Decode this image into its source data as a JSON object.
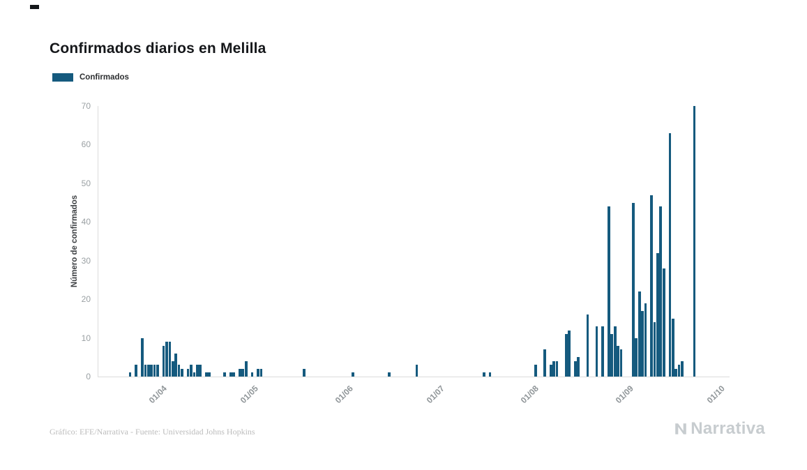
{
  "page": {
    "title": "Confirmados diarios en Melilla",
    "legend": {
      "label": "Confirmados",
      "color": "#155a7e"
    },
    "footer": "Gráfico: EFE/Narrativa - Fuente: Universidad Johns Hopkins",
    "brand": "Narrativa"
  },
  "chart_data": {
    "type": "bar",
    "title": "Confirmados diarios en Melilla",
    "xlabel": "",
    "ylabel": "Número de confirmados",
    "ylim": [
      0,
      70
    ],
    "yticks": [
      0,
      10,
      20,
      30,
      40,
      50,
      60,
      70
    ],
    "grid": false,
    "legend_position": "top-left",
    "x_unit": "day_index_from_axis_start",
    "axis_days": 207,
    "xticks": [
      {
        "label": "01/04",
        "day": 21
      },
      {
        "label": "01/05",
        "day": 51
      },
      {
        "label": "01/06",
        "day": 82
      },
      {
        "label": "01/07",
        "day": 112
      },
      {
        "label": "01/08",
        "day": 143
      },
      {
        "label": "01/09",
        "day": 174
      },
      {
        "label": "01/10",
        "day": 204
      }
    ],
    "points_format": "[day_index, confirmed_count]",
    "series": [
      {
        "name": "Confirmados",
        "color": "#155a7e",
        "points": [
          [
            10,
            1
          ],
          [
            12,
            3
          ],
          [
            14,
            10
          ],
          [
            15,
            3
          ],
          [
            16,
            3
          ],
          [
            17,
            3
          ],
          [
            18,
            3
          ],
          [
            19,
            3
          ],
          [
            21,
            8
          ],
          [
            22,
            9
          ],
          [
            23,
            9
          ],
          [
            24,
            4
          ],
          [
            25,
            6
          ],
          [
            26,
            3
          ],
          [
            27,
            2
          ],
          [
            29,
            2
          ],
          [
            30,
            3
          ],
          [
            31,
            1
          ],
          [
            32,
            3
          ],
          [
            33,
            3
          ],
          [
            35,
            1
          ],
          [
            36,
            1
          ],
          [
            41,
            1
          ],
          [
            43,
            1
          ],
          [
            44,
            1
          ],
          [
            46,
            2
          ],
          [
            47,
            2
          ],
          [
            48,
            4
          ],
          [
            50,
            1
          ],
          [
            52,
            2
          ],
          [
            53,
            2
          ],
          [
            67,
            2
          ],
          [
            83,
            1
          ],
          [
            95,
            1
          ],
          [
            104,
            3
          ],
          [
            126,
            1
          ],
          [
            128,
            1
          ],
          [
            143,
            3
          ],
          [
            146,
            7
          ],
          [
            148,
            3
          ],
          [
            149,
            4
          ],
          [
            150,
            4
          ],
          [
            153,
            11
          ],
          [
            154,
            12
          ],
          [
            156,
            4
          ],
          [
            157,
            5
          ],
          [
            160,
            16
          ],
          [
            163,
            13
          ],
          [
            165,
            13
          ],
          [
            167,
            44
          ],
          [
            168,
            11
          ],
          [
            169,
            13
          ],
          [
            170,
            8
          ],
          [
            171,
            7
          ],
          [
            175,
            45
          ],
          [
            176,
            10
          ],
          [
            177,
            22
          ],
          [
            178,
            17
          ],
          [
            179,
            19
          ],
          [
            181,
            47
          ],
          [
            182,
            14
          ],
          [
            183,
            32
          ],
          [
            184,
            44
          ],
          [
            185,
            28
          ],
          [
            187,
            63
          ],
          [
            188,
            15
          ],
          [
            189,
            2
          ],
          [
            190,
            3
          ],
          [
            191,
            4
          ],
          [
            195,
            70
          ]
        ]
      }
    ]
  }
}
